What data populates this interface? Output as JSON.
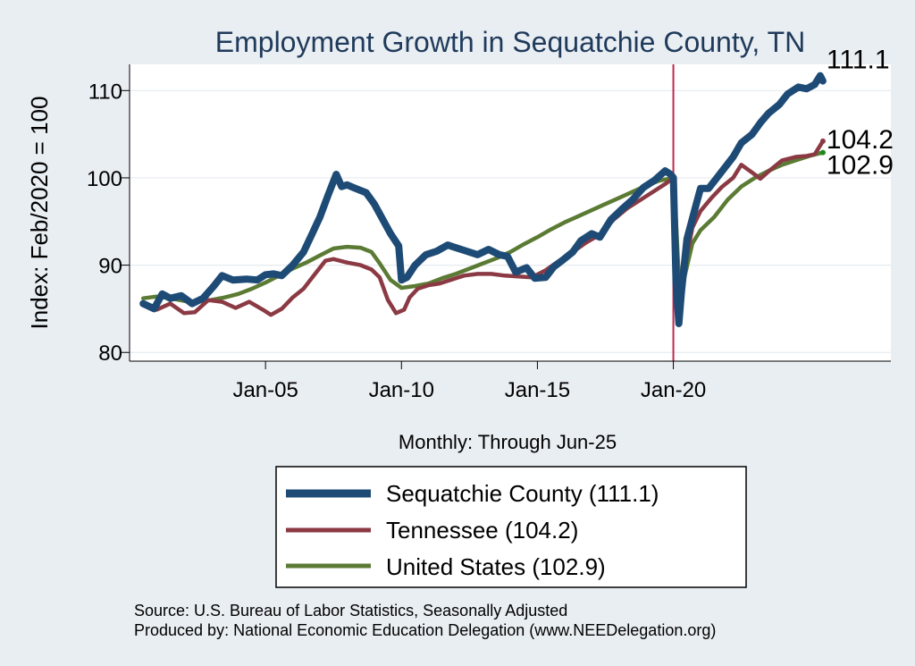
{
  "chart_data": {
    "type": "line",
    "title": "Employment Growth in Sequatchie  County, TN",
    "ylabel": "Index: Feb/2020 = 100",
    "xlabel": "Monthly: Through Jun-25",
    "ylim": [
      79,
      113
    ],
    "yticks": [
      80,
      90,
      100,
      110
    ],
    "xlim": [
      2000.0,
      2028.0
    ],
    "xticks": [
      {
        "x": 2005.0,
        "label": "Jan-05"
      },
      {
        "x": 2010.0,
        "label": "Jan-10"
      },
      {
        "x": 2015.0,
        "label": "Jan-15"
      },
      {
        "x": 2020.0,
        "label": "Jan-20"
      }
    ],
    "reference_line": {
      "x": 2020.0,
      "color": "#c0284e"
    },
    "grid": true,
    "legend_position": "bottom",
    "series": [
      {
        "name": "Sequatchie  County (111.1)",
        "color": "#1e4b75",
        "end_label": "111.1",
        "points": [
          [
            2000.5,
            85.6
          ],
          [
            2000.9,
            85.0
          ],
          [
            2001.2,
            86.7
          ],
          [
            2001.5,
            86.2
          ],
          [
            2001.9,
            86.5
          ],
          [
            2002.3,
            85.6
          ],
          [
            2002.7,
            86.2
          ],
          [
            2003.1,
            87.6
          ],
          [
            2003.4,
            88.8
          ],
          [
            2003.8,
            88.3
          ],
          [
            2004.3,
            88.4
          ],
          [
            2004.7,
            88.3
          ],
          [
            2005.0,
            88.9
          ],
          [
            2005.3,
            89.0
          ],
          [
            2005.6,
            88.8
          ],
          [
            2006.0,
            90.0
          ],
          [
            2006.4,
            91.5
          ],
          [
            2006.7,
            93.5
          ],
          [
            2007.0,
            95.5
          ],
          [
            2007.3,
            98.0
          ],
          [
            2007.6,
            100.4
          ],
          [
            2007.8,
            99.0
          ],
          [
            2008.0,
            99.2
          ],
          [
            2008.3,
            98.8
          ],
          [
            2008.7,
            98.3
          ],
          [
            2009.0,
            97.0
          ],
          [
            2009.3,
            95.3
          ],
          [
            2009.6,
            93.6
          ],
          [
            2009.9,
            92.2
          ],
          [
            2010.0,
            88.3
          ],
          [
            2010.2,
            88.6
          ],
          [
            2010.5,
            90.0
          ],
          [
            2010.9,
            91.2
          ],
          [
            2011.3,
            91.6
          ],
          [
            2011.7,
            92.3
          ],
          [
            2012.0,
            92.0
          ],
          [
            2012.4,
            91.6
          ],
          [
            2012.8,
            91.2
          ],
          [
            2013.2,
            91.8
          ],
          [
            2013.6,
            91.2
          ],
          [
            2013.9,
            91.0
          ],
          [
            2014.2,
            89.2
          ],
          [
            2014.6,
            89.7
          ],
          [
            2014.9,
            88.5
          ],
          [
            2015.3,
            88.6
          ],
          [
            2015.6,
            89.8
          ],
          [
            2015.9,
            90.5
          ],
          [
            2016.3,
            91.5
          ],
          [
            2016.6,
            92.8
          ],
          [
            2017.0,
            93.6
          ],
          [
            2017.3,
            93.2
          ],
          [
            2017.7,
            95.2
          ],
          [
            2018.1,
            96.4
          ],
          [
            2018.5,
            97.5
          ],
          [
            2018.9,
            98.9
          ],
          [
            2019.3,
            99.7
          ],
          [
            2019.7,
            100.8
          ],
          [
            2019.9,
            100.4
          ],
          [
            2020.0,
            100.0
          ],
          [
            2020.1,
            88.0
          ],
          [
            2020.2,
            83.3
          ],
          [
            2020.3,
            87.0
          ],
          [
            2020.5,
            93.0
          ],
          [
            2020.8,
            96.5
          ],
          [
            2021.0,
            98.8
          ],
          [
            2021.3,
            98.8
          ],
          [
            2021.6,
            100.0
          ],
          [
            2021.9,
            101.2
          ],
          [
            2022.2,
            102.4
          ],
          [
            2022.5,
            104.0
          ],
          [
            2022.9,
            105.0
          ],
          [
            2023.2,
            106.3
          ],
          [
            2023.5,
            107.4
          ],
          [
            2023.9,
            108.4
          ],
          [
            2024.2,
            109.6
          ],
          [
            2024.6,
            110.4
          ],
          [
            2024.9,
            110.2
          ],
          [
            2025.2,
            110.7
          ],
          [
            2025.4,
            111.7
          ],
          [
            2025.5,
            111.1
          ]
        ]
      },
      {
        "name": "Tennessee (104.2)",
        "color": "#8b3a44",
        "end_label": "104.2",
        "points": [
          [
            2000.5,
            85.4
          ],
          [
            2001.0,
            84.9
          ],
          [
            2001.5,
            85.6
          ],
          [
            2002.0,
            84.5
          ],
          [
            2002.4,
            84.6
          ],
          [
            2002.9,
            86.0
          ],
          [
            2003.4,
            85.8
          ],
          [
            2003.9,
            85.1
          ],
          [
            2004.4,
            85.8
          ],
          [
            2004.9,
            84.9
          ],
          [
            2005.2,
            84.3
          ],
          [
            2005.6,
            85.0
          ],
          [
            2006.0,
            86.3
          ],
          [
            2006.4,
            87.3
          ],
          [
            2006.8,
            88.9
          ],
          [
            2007.2,
            90.5
          ],
          [
            2007.5,
            90.7
          ],
          [
            2008.0,
            90.3
          ],
          [
            2008.5,
            90.0
          ],
          [
            2008.9,
            89.5
          ],
          [
            2009.2,
            88.6
          ],
          [
            2009.5,
            86.0
          ],
          [
            2009.8,
            84.5
          ],
          [
            2010.1,
            84.9
          ],
          [
            2010.3,
            86.3
          ],
          [
            2010.6,
            87.3
          ],
          [
            2011.0,
            87.7
          ],
          [
            2011.4,
            87.9
          ],
          [
            2011.8,
            88.3
          ],
          [
            2012.3,
            88.8
          ],
          [
            2012.8,
            89.0
          ],
          [
            2013.3,
            89.0
          ],
          [
            2013.8,
            88.8
          ],
          [
            2014.3,
            88.7
          ],
          [
            2014.8,
            88.6
          ],
          [
            2015.3,
            89.4
          ],
          [
            2015.8,
            90.5
          ],
          [
            2016.3,
            91.5
          ],
          [
            2016.8,
            92.6
          ],
          [
            2017.3,
            93.5
          ],
          [
            2017.8,
            95.2
          ],
          [
            2018.3,
            96.5
          ],
          [
            2018.8,
            97.5
          ],
          [
            2019.3,
            98.5
          ],
          [
            2019.7,
            99.3
          ],
          [
            2020.0,
            100.0
          ],
          [
            2020.1,
            92.0
          ],
          [
            2020.25,
            85.2
          ],
          [
            2020.4,
            89.5
          ],
          [
            2020.7,
            94.3
          ],
          [
            2021.0,
            96.2
          ],
          [
            2021.4,
            97.7
          ],
          [
            2021.8,
            99.0
          ],
          [
            2022.2,
            100.0
          ],
          [
            2022.5,
            101.5
          ],
          [
            2022.9,
            100.6
          ],
          [
            2023.2,
            99.9
          ],
          [
            2023.6,
            101.0
          ],
          [
            2024.0,
            102.0
          ],
          [
            2024.5,
            102.4
          ],
          [
            2024.9,
            102.5
          ],
          [
            2025.2,
            102.7
          ],
          [
            2025.5,
            104.2
          ]
        ]
      },
      {
        "name": "United States (102.9)",
        "color": "#5b7b34",
        "end_label": "102.9",
        "points": [
          [
            2000.5,
            86.2
          ],
          [
            2001.0,
            86.4
          ],
          [
            2001.5,
            86.2
          ],
          [
            2002.0,
            85.9
          ],
          [
            2002.5,
            85.8
          ],
          [
            2003.0,
            86.0
          ],
          [
            2003.5,
            86.3
          ],
          [
            2004.0,
            86.7
          ],
          [
            2004.5,
            87.3
          ],
          [
            2005.0,
            88.0
          ],
          [
            2005.5,
            88.8
          ],
          [
            2006.0,
            89.6
          ],
          [
            2006.5,
            90.3
          ],
          [
            2007.0,
            91.1
          ],
          [
            2007.5,
            91.9
          ],
          [
            2008.0,
            92.1
          ],
          [
            2008.5,
            92.0
          ],
          [
            2008.9,
            91.5
          ],
          [
            2009.2,
            90.2
          ],
          [
            2009.6,
            88.3
          ],
          [
            2010.0,
            87.4
          ],
          [
            2010.5,
            87.6
          ],
          [
            2011.0,
            87.9
          ],
          [
            2011.5,
            88.5
          ],
          [
            2012.0,
            89.0
          ],
          [
            2012.5,
            89.6
          ],
          [
            2013.0,
            90.2
          ],
          [
            2013.5,
            90.8
          ],
          [
            2014.0,
            91.5
          ],
          [
            2014.5,
            92.4
          ],
          [
            2015.0,
            93.2
          ],
          [
            2015.5,
            94.1
          ],
          [
            2016.0,
            94.9
          ],
          [
            2016.5,
            95.6
          ],
          [
            2017.0,
            96.3
          ],
          [
            2017.5,
            97.0
          ],
          [
            2018.0,
            97.7
          ],
          [
            2018.5,
            98.4
          ],
          [
            2019.0,
            99.1
          ],
          [
            2019.5,
            99.7
          ],
          [
            2020.0,
            100.0
          ],
          [
            2020.1,
            95.0
          ],
          [
            2020.25,
            85.4
          ],
          [
            2020.4,
            88.5
          ],
          [
            2020.7,
            92.5
          ],
          [
            2021.0,
            94.0
          ],
          [
            2021.5,
            95.5
          ],
          [
            2022.0,
            97.5
          ],
          [
            2022.5,
            99.0
          ],
          [
            2023.0,
            100.0
          ],
          [
            2023.5,
            100.8
          ],
          [
            2024.0,
            101.5
          ],
          [
            2024.5,
            102.0
          ],
          [
            2025.0,
            102.5
          ],
          [
            2025.5,
            102.9
          ]
        ]
      }
    ]
  },
  "source_line1": "Source: U.S. Bureau of Labor Statistics, Seasonally Adjusted",
  "source_line2": "Produced by: National Economic Education Delegation (www.NEEDelegation.org)"
}
